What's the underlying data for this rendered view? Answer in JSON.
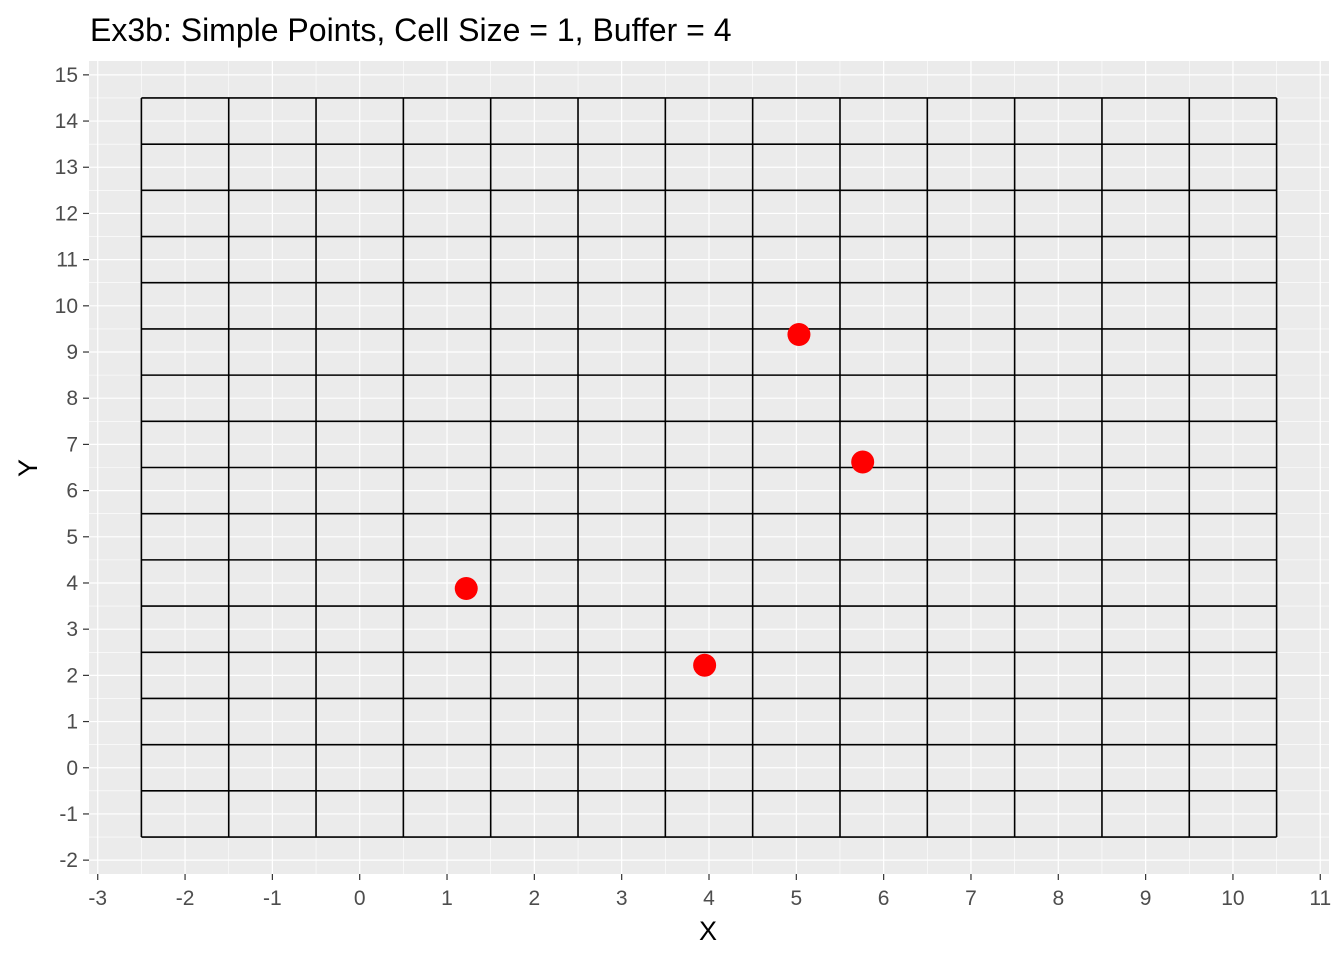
{
  "chart_data": {
    "type": "scatter",
    "title": "Ex3b: Simple Points, Cell Size = 1, Buffer = 4",
    "xlabel": "X",
    "ylabel": "Y",
    "xlim": [
      -3.1,
      11.1
    ],
    "ylim": [
      -2.3,
      15.3
    ],
    "x_ticks": [
      -3,
      -2,
      -1,
      0,
      1,
      2,
      3,
      4,
      5,
      6,
      7,
      8,
      9,
      10,
      11
    ],
    "y_ticks": [
      -2,
      -1,
      0,
      1,
      2,
      3,
      4,
      5,
      6,
      7,
      8,
      9,
      10,
      11,
      12,
      13,
      14,
      15
    ],
    "grid": true,
    "panel_background": "#ebebeb",
    "grid_color": "#ffffff",
    "overlay_grid": {
      "cell_size": 1,
      "buffer": 4,
      "x_min": -2.5,
      "x_max": 10.5,
      "y_min": -1.5,
      "y_max": 14.5,
      "color": "#000000"
    },
    "series": [
      {
        "color": "#ff0000",
        "points": [
          {
            "x": 1.22,
            "y": 3.88
          },
          {
            "x": 3.95,
            "y": 2.22
          },
          {
            "x": 5.03,
            "y": 9.38
          },
          {
            "x": 5.76,
            "y": 6.62
          }
        ]
      }
    ]
  }
}
